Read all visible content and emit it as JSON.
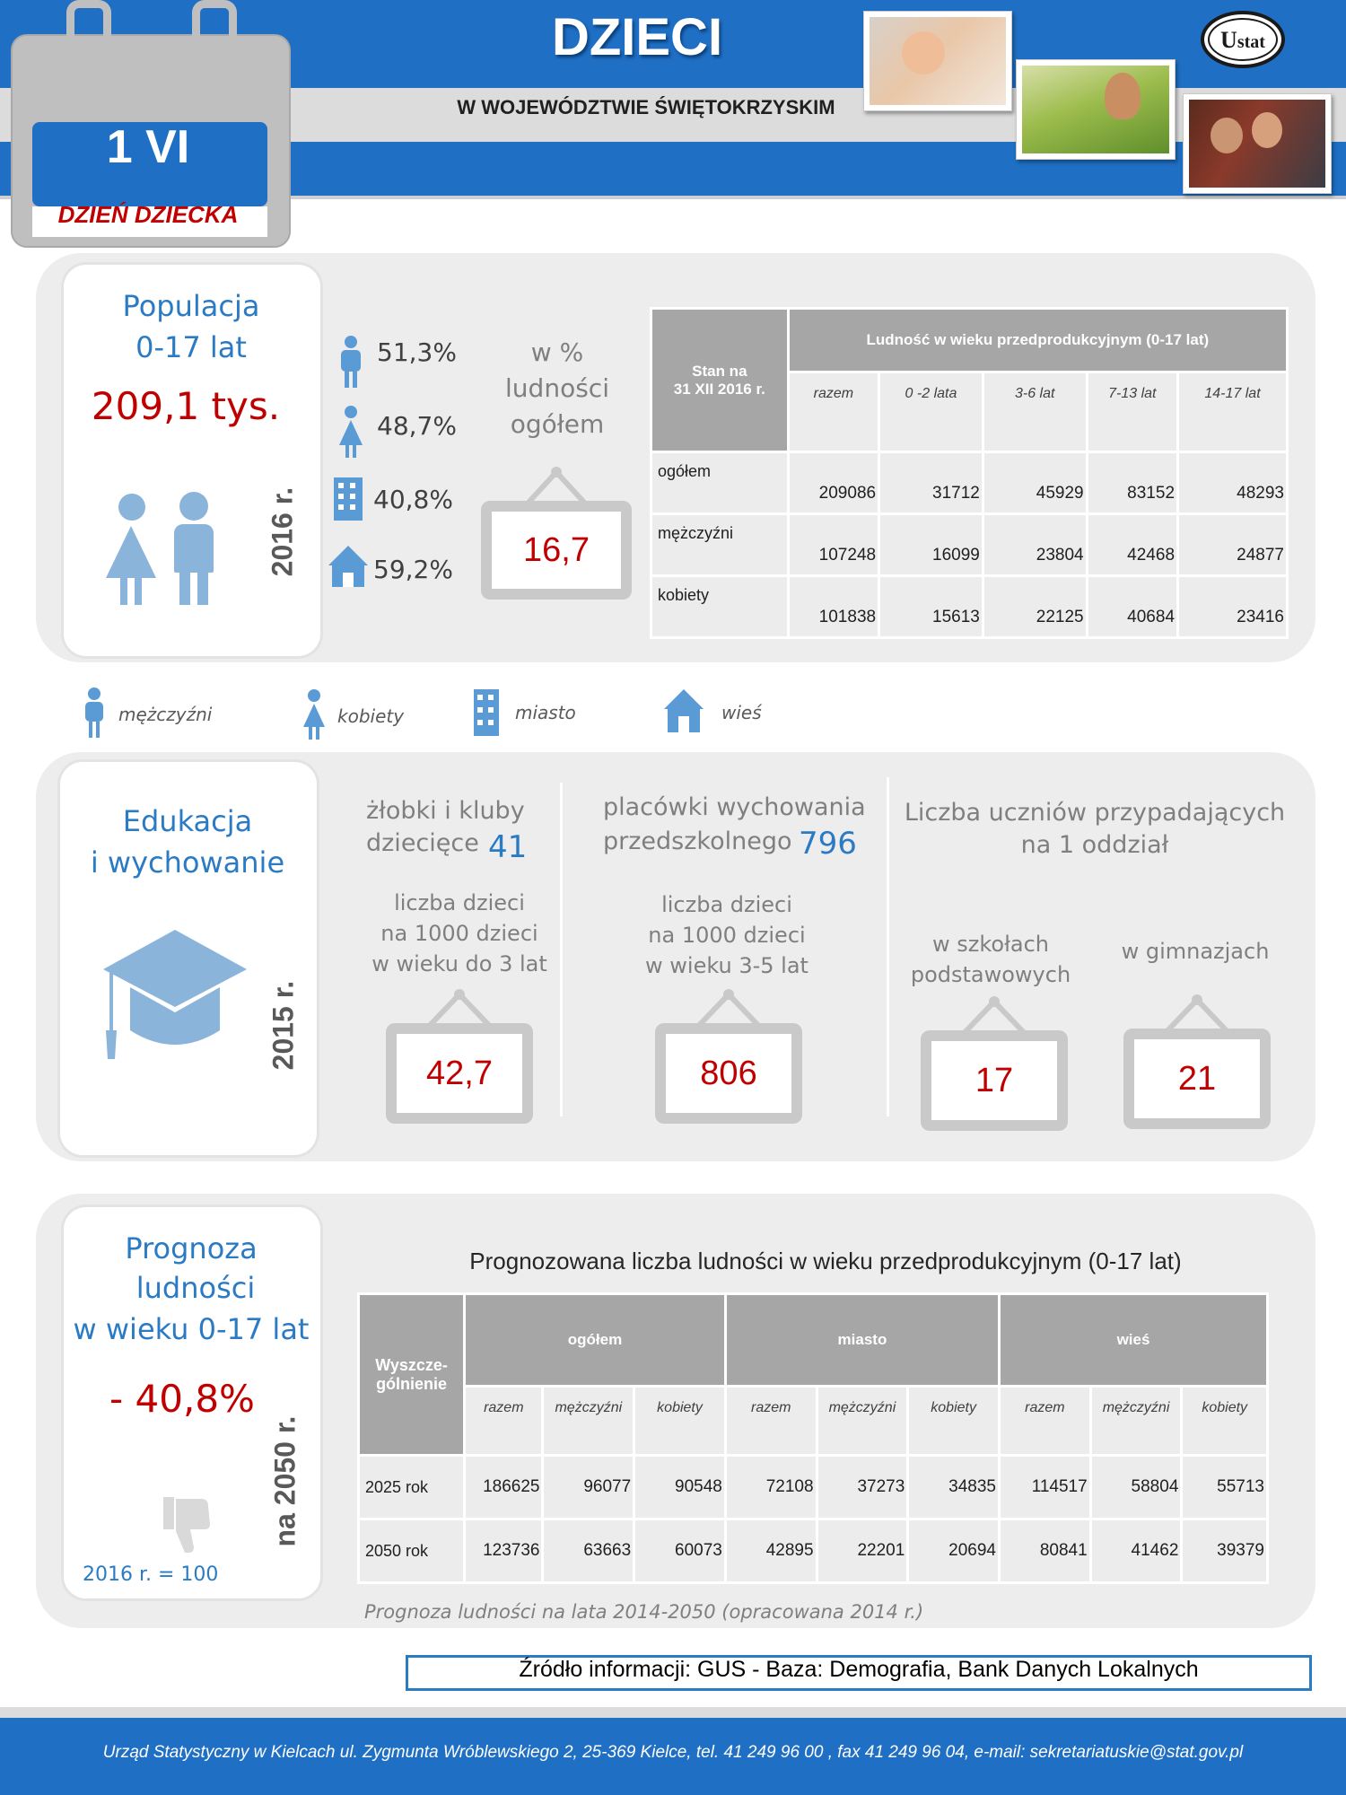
{
  "header": {
    "title": "DZIECI",
    "subtitle": "W WOJEWÓDZTWIE ŚWIĘTOKRZYSKIM",
    "calendar_date": "1 VI",
    "calendar_label": "DZIEŃ DZIECKA",
    "logo_text": "U stat"
  },
  "population": {
    "title_line1": "Populacja",
    "title_line2": "0-17 lat",
    "total": "209,1 tys.",
    "year": "2016 r.",
    "men_pct": "51,3%",
    "women_pct": "48,7%",
    "city_pct": "40,8%",
    "village_pct": "59,2%",
    "share_label_1": "w %",
    "share_label_2": "ludności",
    "share_label_3": "ogółem",
    "share_value": "16,7",
    "table": {
      "corner_line1": "Stan na",
      "corner_line2": "31 XII 2016 r.",
      "group_header": "Ludność w wieku przedprodukcyjnym  (0-17 lat)",
      "columns": [
        "razem",
        "0 -2 lata",
        "3-6 lat",
        "7-13 lat",
        "14-17 lat"
      ],
      "rows": [
        {
          "label": "ogółem",
          "values": [
            "209086",
            "31712",
            "45929",
            "83152",
            "48293"
          ]
        },
        {
          "label": "mężczyźni",
          "values": [
            "107248",
            "16099",
            "23804",
            "42468",
            "24877"
          ]
        },
        {
          "label": "kobiety",
          "values": [
            "101838",
            "15613",
            "22125",
            "40684",
            "23416"
          ]
        }
      ]
    }
  },
  "legend": {
    "men": "mężczyźni",
    "women": "kobiety",
    "city": "miasto",
    "village": "wieś"
  },
  "education": {
    "title_line1": "Edukacja",
    "title_line2": "i wychowanie",
    "year": "2015 r.",
    "nursery_label_1": "żłobki i kluby",
    "nursery_label_2": "dziecięce",
    "nursery_count": "41",
    "nursery_ratio_1": "liczba dzieci",
    "nursery_ratio_2": "na 1000 dzieci",
    "nursery_ratio_3": "w wieku do 3 lat",
    "nursery_ratio_value": "42,7",
    "preschool_label_1": "placówki  wychowania",
    "preschool_label_2": "przedszkolnego",
    "preschool_count": "796",
    "preschool_ratio_1": "liczba dzieci",
    "preschool_ratio_2": "na 1000 dzieci",
    "preschool_ratio_3": "w wieku 3-5 lat",
    "preschool_ratio_value": "806",
    "pupils_title_1": "Liczba uczniów przypadających",
    "pupils_title_2": "na 1 oddział",
    "primary_label_1": "w szkołach",
    "primary_label_2": "podstawowych",
    "primary_value": "17",
    "gymnasium_label": "w gimnazjach",
    "gymnasium_value": "21"
  },
  "forecast": {
    "title_line1": "Prognoza",
    "title_line2": "ludności",
    "title_line3": "w wieku 0-17 lat",
    "change": "- 40,8%",
    "base_note": "2016 r. = 100",
    "year": "na 2050 r.",
    "table_title": "Prognozowana liczba ludności w wieku przedprodukcyjnym (0-17 lat)",
    "table": {
      "corner": "Wyszcze-gólnienie",
      "groups": [
        "ogółem",
        "miasto",
        "wieś"
      ],
      "columns": [
        "razem",
        "mężczyźni",
        "kobiety",
        "razem",
        "mężczyźni",
        "kobiety",
        "razem",
        "mężczyźni",
        "kobiety"
      ],
      "rows": [
        {
          "label": "2025 rok",
          "values": [
            "186625",
            "96077",
            "90548",
            "72108",
            "37273",
            "34835",
            "114517",
            "58804",
            "55713"
          ]
        },
        {
          "label": "2050 rok",
          "values": [
            "123736",
            "63663",
            "60073",
            "42895",
            "22201",
            "20694",
            "80841",
            "41462",
            "39379"
          ]
        }
      ]
    },
    "source_note": "Prognoza ludności na lata 2014-2050 (opracowana 2014 r.)"
  },
  "source": "Źródło informacji: GUS - Baza:  Demografia, Bank Danych Lokalnych",
  "footer": "Urząd Statystyczny w Kielcach ul. Zygmunta Wróblewskiego 2, 25-369 Kielce, tel. 41 249 96 00 , fax 41 249 96 04, e-mail: sekretariatuskie@stat.gov.pl",
  "colors": {
    "brand_blue": "#1f6fc5",
    "accent_blue": "#2a7bc4",
    "value_red": "#c00000",
    "panel_gray": "#ededed",
    "table_header": "#a6a6a6"
  }
}
